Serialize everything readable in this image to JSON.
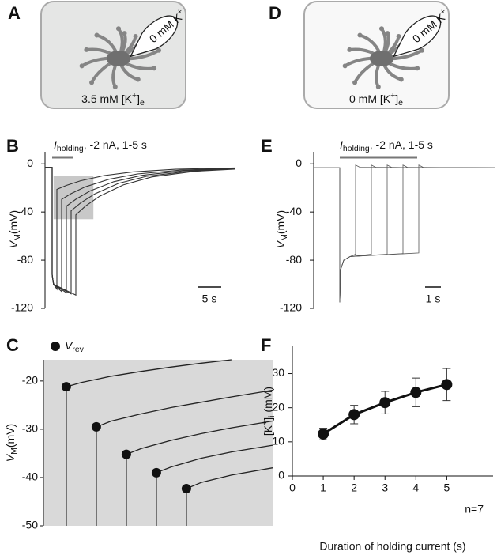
{
  "diagrams": [
    {
      "label": "A",
      "pipette": [
        "0 mM K",
        "+"
      ],
      "bath": [
        "3.5 mM [K",
        "+",
        "]",
        "e"
      ],
      "shaded": true
    },
    {
      "label": "D",
      "pipette": [
        "0 mM K",
        "+"
      ],
      "bath": [
        "0 mM [K",
        "+",
        "]",
        "e"
      ],
      "shaded": false
    }
  ],
  "chart_data": [
    {
      "type": "traces",
      "panel": "B",
      "annotation": [
        "I",
        "holding",
        ", -2 nA, 1-5 s"
      ],
      "ylabel": [
        "V",
        "M",
        "(mV)"
      ],
      "ylim": [
        -120,
        10
      ],
      "yticks": [
        0,
        -40,
        -80,
        -120
      ],
      "xlim": [
        0,
        40
      ],
      "scale_bar": {
        "value": 5,
        "label": "5 s"
      },
      "highlight": {
        "x": [
          1.8,
          10.2
        ],
        "y": [
          -46,
          -10
        ]
      },
      "color": "#333333",
      "series": [
        {
          "x": [
            0,
            1.5,
            1.5,
            1.8,
            2.5,
            2.5,
            4.5,
            7.5,
            12.5,
            18.5,
            27.5,
            40
          ],
          "values": [
            -3,
            -3,
            -92,
            -100,
            -104,
            -21.2,
            -17.9,
            -14.0,
            -9.7,
            -6.7,
            -4.5,
            -3.4
          ]
        },
        {
          "x": [
            0,
            1.5,
            1.5,
            1.8,
            3.5,
            3.5,
            5.5,
            8.5,
            13.5,
            19.5,
            28.5,
            40
          ],
          "values": [
            -3,
            -3,
            -92,
            -100,
            -106,
            -29.5,
            -24.7,
            -19.1,
            -12.8,
            -8.4,
            -5.2,
            -3.7
          ]
        },
        {
          "x": [
            0,
            1.5,
            1.5,
            1.8,
            4.5,
            4.5,
            6.5,
            9.5,
            14.5,
            20.5,
            29.5,
            40
          ],
          "values": [
            -3,
            -3,
            -92,
            -100,
            -107,
            -35.2,
            -29.4,
            -22.5,
            -14.8,
            -9.5,
            -5.6,
            -3.9
          ]
        },
        {
          "x": [
            0,
            1.5,
            1.5,
            1.8,
            5.5,
            5.5,
            7.5,
            10.5,
            15.5,
            21.5,
            30.5,
            40
          ],
          "values": [
            -3,
            -3,
            -92,
            -100,
            -108,
            -39,
            -32.5,
            -24.9,
            -16.2,
            -10.3,
            -6.0,
            -4.1
          ]
        },
        {
          "x": [
            0,
            1.5,
            1.5,
            1.8,
            6.5,
            6.5,
            8.5,
            11.5,
            16.5,
            22.5,
            31.5,
            40
          ],
          "values": [
            -3,
            -3,
            -92,
            -100,
            -109,
            -42.3,
            -35.2,
            -26.9,
            -17.5,
            -10.9,
            -6.2,
            -4.4
          ]
        }
      ]
    },
    {
      "type": "traces",
      "panel": "E",
      "annotation": [
        "I",
        "holding",
        ", -2 nA, 1-5 s"
      ],
      "ylabel": [
        "V",
        "M",
        "(mV)"
      ],
      "ylim": [
        -120,
        10
      ],
      "yticks": [
        0,
        -40,
        -80,
        -120
      ],
      "xlim": [
        0,
        11.5
      ],
      "scale_bar": {
        "value": 1,
        "label": "1 s"
      },
      "color": "#555555",
      "series": [
        {
          "x": [
            0,
            1.65,
            1.65,
            1.7,
            1.9,
            2.3,
            2.65,
            2.65,
            2.95,
            11.5
          ],
          "values": [
            -3.3,
            -3.3,
            -115,
            -88,
            -80,
            -77,
            -75,
            -1,
            -3,
            -3.3
          ]
        },
        {
          "x": [
            0,
            1.65,
            1.65,
            1.7,
            1.9,
            2.3,
            3.65,
            3.65,
            3.95,
            11.5
          ],
          "values": [
            -3.3,
            -3.3,
            -115,
            -88,
            -80,
            -77,
            -75,
            -1,
            -3,
            -3.3
          ]
        },
        {
          "x": [
            0,
            1.65,
            1.65,
            1.7,
            1.9,
            2.3,
            4.65,
            4.65,
            4.95,
            11.5
          ],
          "values": [
            -3.3,
            -3.3,
            -115,
            -88,
            -80,
            -77,
            -75,
            -1,
            -3,
            -3.3
          ]
        },
        {
          "x": [
            0,
            1.65,
            1.65,
            1.7,
            1.9,
            2.3,
            5.65,
            5.65,
            5.95,
            11.5
          ],
          "values": [
            -3.3,
            -3.3,
            -115,
            -88,
            -80,
            -77,
            -74.5,
            -1,
            -3,
            -3.3
          ]
        },
        {
          "x": [
            0,
            1.65,
            1.65,
            1.7,
            1.9,
            2.3,
            6.65,
            6.65,
            6.95,
            11.5
          ],
          "values": [
            -3.3,
            -3.3,
            -115,
            -88,
            -80,
            -77,
            -74,
            -1,
            -3,
            -3.3
          ]
        }
      ]
    },
    {
      "type": "traces",
      "panel": "C",
      "ylabel": [
        "V",
        "M",
        "(mV)"
      ],
      "ylim": [
        -50,
        -15.6
      ],
      "yticks": [
        -20,
        -30,
        -40,
        -50
      ],
      "xlim": [
        1.74,
        9.37
      ],
      "background": "#d9d9d9",
      "color": "#222222",
      "series": [
        {
          "x": [
            2.5,
            2.5,
            3,
            4,
            5,
            6,
            7,
            8
          ],
          "values": [
            -50,
            -21.2,
            -20.3,
            -19,
            -18,
            -17.1,
            -16.3,
            -15.6
          ]
        },
        {
          "x": [
            3.5,
            3.5,
            4,
            5,
            6,
            7,
            8,
            9.37
          ],
          "values": [
            -50,
            -29.5,
            -28.3,
            -26.8,
            -25.5,
            -24.4,
            -23.3,
            -21.9
          ]
        },
        {
          "x": [
            4.5,
            4.5,
            5,
            6,
            7,
            8,
            9.37
          ],
          "values": [
            -50,
            -35.2,
            -34,
            -32.3,
            -30.9,
            -29.7,
            -28.3
          ]
        },
        {
          "x": [
            5.5,
            5.5,
            6,
            7,
            8,
            9.37
          ],
          "values": [
            -50,
            -39,
            -37.8,
            -36,
            -34.7,
            -33.3
          ]
        },
        {
          "x": [
            6.5,
            6.5,
            7,
            8,
            9.37
          ],
          "values": [
            -50,
            -42.3,
            -41,
            -39.5,
            -38
          ]
        }
      ],
      "markers": {
        "legend": [
          "V",
          "rev"
        ],
        "x": [
          2.5,
          3.5,
          4.5,
          5.5,
          6.5
        ],
        "values": [
          -21.2,
          -29.5,
          -35.2,
          -39,
          -42.3
        ]
      }
    },
    {
      "type": "line",
      "panel": "F",
      "xlabel": "Duration of holding current  (s)",
      "ylabel": [
        "[K",
        "+",
        "]",
        "i",
        " (mM)"
      ],
      "annotation": "n=7",
      "x": [
        1,
        2,
        3,
        4,
        5
      ],
      "values": [
        12.3,
        18,
        21.5,
        24.5,
        26.8
      ],
      "errors": [
        1.7,
        2.7,
        3.3,
        4.2,
        4.7
      ],
      "xlim": [
        0,
        6.5
      ],
      "xticks": [
        0,
        1,
        2,
        3,
        4,
        5
      ],
      "ylim": [
        0,
        38
      ],
      "yticks": [
        0,
        10,
        20,
        30
      ],
      "color": "#111111"
    }
  ]
}
